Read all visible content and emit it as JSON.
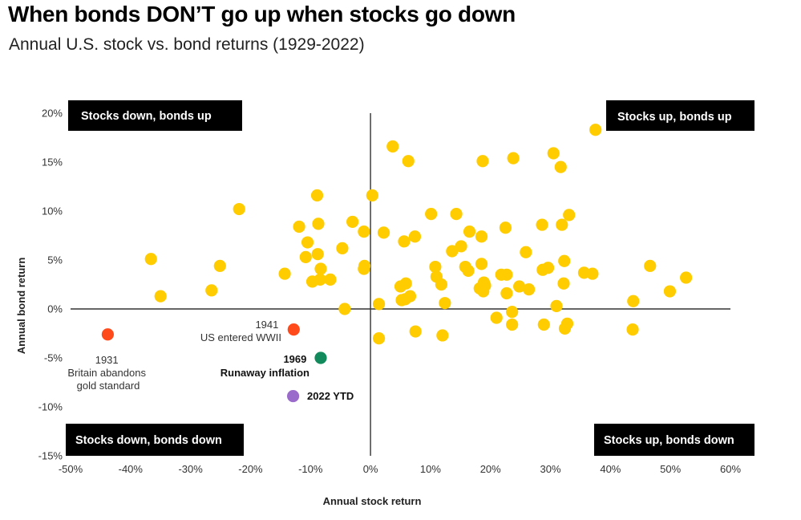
{
  "chart_data": {
    "type": "scatter",
    "title": "When bonds DON’T go up when stocks go down",
    "subtitle": "Annual U.S. stock vs. bond returns (1929-2022)",
    "xlabel": "Annual stock return",
    "ylabel": "Annual bond return",
    "xlim": [
      -50,
      60
    ],
    "ylim": [
      -15,
      20
    ],
    "x_ticks": [
      -50,
      -40,
      -30,
      -20,
      -10,
      0,
      10,
      20,
      30,
      40,
      50,
      60
    ],
    "x_tick_labels": [
      "-50%",
      "-40%",
      "-30%",
      "-20%",
      "-10%",
      "0%",
      "10%",
      "20%",
      "30%",
      "40%",
      "50%",
      "60%"
    ],
    "y_ticks": [
      20,
      15,
      10,
      5,
      0,
      -5,
      -10,
      -15
    ],
    "y_tick_labels": [
      "20%",
      "15%",
      "10%",
      "5%",
      "0%",
      "-5%",
      "-10%",
      "-15%"
    ],
    "grid": false,
    "quadrant_labels": {
      "top_left": "Stocks down, bonds up",
      "top_right": "Stocks up, bonds up",
      "bottom_left": "Stocks down, bonds down",
      "bottom_right": "Stocks up, bonds down"
    },
    "colors": {
      "default": "#FFCC00",
      "red": "#FF4A1C",
      "green": "#128A5C",
      "purple": "#9B6BCB",
      "label_bg": "#000000"
    },
    "points": [
      {
        "x": 37.5,
        "y": 18.3
      },
      {
        "x": 3.7,
        "y": 16.6
      },
      {
        "x": 6.3,
        "y": 15.1
      },
      {
        "x": 18.7,
        "y": 15.1
      },
      {
        "x": 23.8,
        "y": 15.4
      },
      {
        "x": 30.5,
        "y": 15.9
      },
      {
        "x": 31.7,
        "y": 14.5
      },
      {
        "x": -8.9,
        "y": 11.6
      },
      {
        "x": 0.3,
        "y": 11.6
      },
      {
        "x": -21.9,
        "y": 10.2
      },
      {
        "x": 10.1,
        "y": 9.7
      },
      {
        "x": 14.3,
        "y": 9.7
      },
      {
        "x": 33.1,
        "y": 9.6
      },
      {
        "x": -3.0,
        "y": 8.9
      },
      {
        "x": -11.9,
        "y": 8.4
      },
      {
        "x": -8.7,
        "y": 8.7
      },
      {
        "x": 28.6,
        "y": 8.6
      },
      {
        "x": 31.9,
        "y": 8.6
      },
      {
        "x": 22.5,
        "y": 8.3
      },
      {
        "x": 16.5,
        "y": 7.9
      },
      {
        "x": -1.1,
        "y": 7.9
      },
      {
        "x": 2.2,
        "y": 7.8
      },
      {
        "x": 7.4,
        "y": 7.4
      },
      {
        "x": 18.5,
        "y": 7.4
      },
      {
        "x": 5.6,
        "y": 6.9
      },
      {
        "x": -10.5,
        "y": 6.8
      },
      {
        "x": 15.1,
        "y": 6.4
      },
      {
        "x": -4.7,
        "y": 6.2
      },
      {
        "x": 13.6,
        "y": 5.9
      },
      {
        "x": 25.9,
        "y": 5.8
      },
      {
        "x": -8.8,
        "y": 5.6
      },
      {
        "x": -10.8,
        "y": 5.3
      },
      {
        "x": -36.6,
        "y": 5.1
      },
      {
        "x": 32.3,
        "y": 4.9
      },
      {
        "x": 18.5,
        "y": 4.6
      },
      {
        "x": -25.1,
        "y": 4.4
      },
      {
        "x": 46.6,
        "y": 4.4
      },
      {
        "x": -1.0,
        "y": 4.4
      },
      {
        "x": 15.8,
        "y": 4.3
      },
      {
        "x": 10.8,
        "y": 4.3
      },
      {
        "x": 29.6,
        "y": 4.2
      },
      {
        "x": -1.1,
        "y": 4.1
      },
      {
        "x": -8.3,
        "y": 4.1
      },
      {
        "x": 16.3,
        "y": 3.9
      },
      {
        "x": 28.7,
        "y": 4.0
      },
      {
        "x": 35.6,
        "y": 3.7
      },
      {
        "x": -14.3,
        "y": 3.6
      },
      {
        "x": 21.8,
        "y": 3.5
      },
      {
        "x": 22.7,
        "y": 3.5
      },
      {
        "x": 37.0,
        "y": 3.6
      },
      {
        "x": 11.0,
        "y": 3.3
      },
      {
        "x": 52.6,
        "y": 3.2
      },
      {
        "x": -6.7,
        "y": 3.0
      },
      {
        "x": -9.7,
        "y": 2.8
      },
      {
        "x": -8.4,
        "y": 3.0
      },
      {
        "x": 18.9,
        "y": 2.7
      },
      {
        "x": 5.9,
        "y": 2.6
      },
      {
        "x": 32.2,
        "y": 2.6
      },
      {
        "x": 11.8,
        "y": 2.5
      },
      {
        "x": 19.1,
        "y": 2.4
      },
      {
        "x": 24.8,
        "y": 2.3
      },
      {
        "x": 5.0,
        "y": 2.3
      },
      {
        "x": 18.2,
        "y": 2.1
      },
      {
        "x": 26.4,
        "y": 2.0
      },
      {
        "x": -26.5,
        "y": 1.9
      },
      {
        "x": 18.8,
        "y": 1.8
      },
      {
        "x": 49.9,
        "y": 1.8
      },
      {
        "x": 22.7,
        "y": 1.6
      },
      {
        "x": -35.0,
        "y": 1.3
      },
      {
        "x": 6.6,
        "y": 1.3
      },
      {
        "x": 5.8,
        "y": 1.0
      },
      {
        "x": 5.2,
        "y": 0.9
      },
      {
        "x": 43.8,
        "y": 0.8
      },
      {
        "x": 12.4,
        "y": 0.6
      },
      {
        "x": 1.4,
        "y": 0.5
      },
      {
        "x": 31.0,
        "y": 0.3
      },
      {
        "x": -4.3,
        "y": 0.0
      },
      {
        "x": 23.6,
        "y": -0.3
      },
      {
        "x": 21.0,
        "y": -0.9
      },
      {
        "x": 32.8,
        "y": -1.5
      },
      {
        "x": 23.6,
        "y": -1.6
      },
      {
        "x": 28.9,
        "y": -1.6
      },
      {
        "x": 32.4,
        "y": -2.0
      },
      {
        "x": 43.7,
        "y": -2.1
      },
      {
        "x": 7.5,
        "y": -2.3
      },
      {
        "x": 12.0,
        "y": -2.7
      },
      {
        "x": 1.4,
        "y": -3.0
      },
      {
        "x": -43.8,
        "y": -2.6,
        "color": "red"
      },
      {
        "x": -12.8,
        "y": -2.1,
        "color": "red"
      },
      {
        "x": -8.3,
        "y": -5.0,
        "color": "green"
      },
      {
        "x": -12.9,
        "y": -8.9,
        "color": "purple"
      }
    ],
    "annotations": [
      {
        "lines": [
          "1931",
          "Britain abandons",
          "gold standard"
        ],
        "style": "normal"
      },
      {
        "lines": [
          "1941",
          "US entered WWII"
        ],
        "style": "normal"
      },
      {
        "lines": [
          "1969",
          "Runaway inflation"
        ],
        "style": "bold"
      },
      {
        "lines": [
          "2022 YTD"
        ],
        "style": "bold"
      }
    ]
  }
}
